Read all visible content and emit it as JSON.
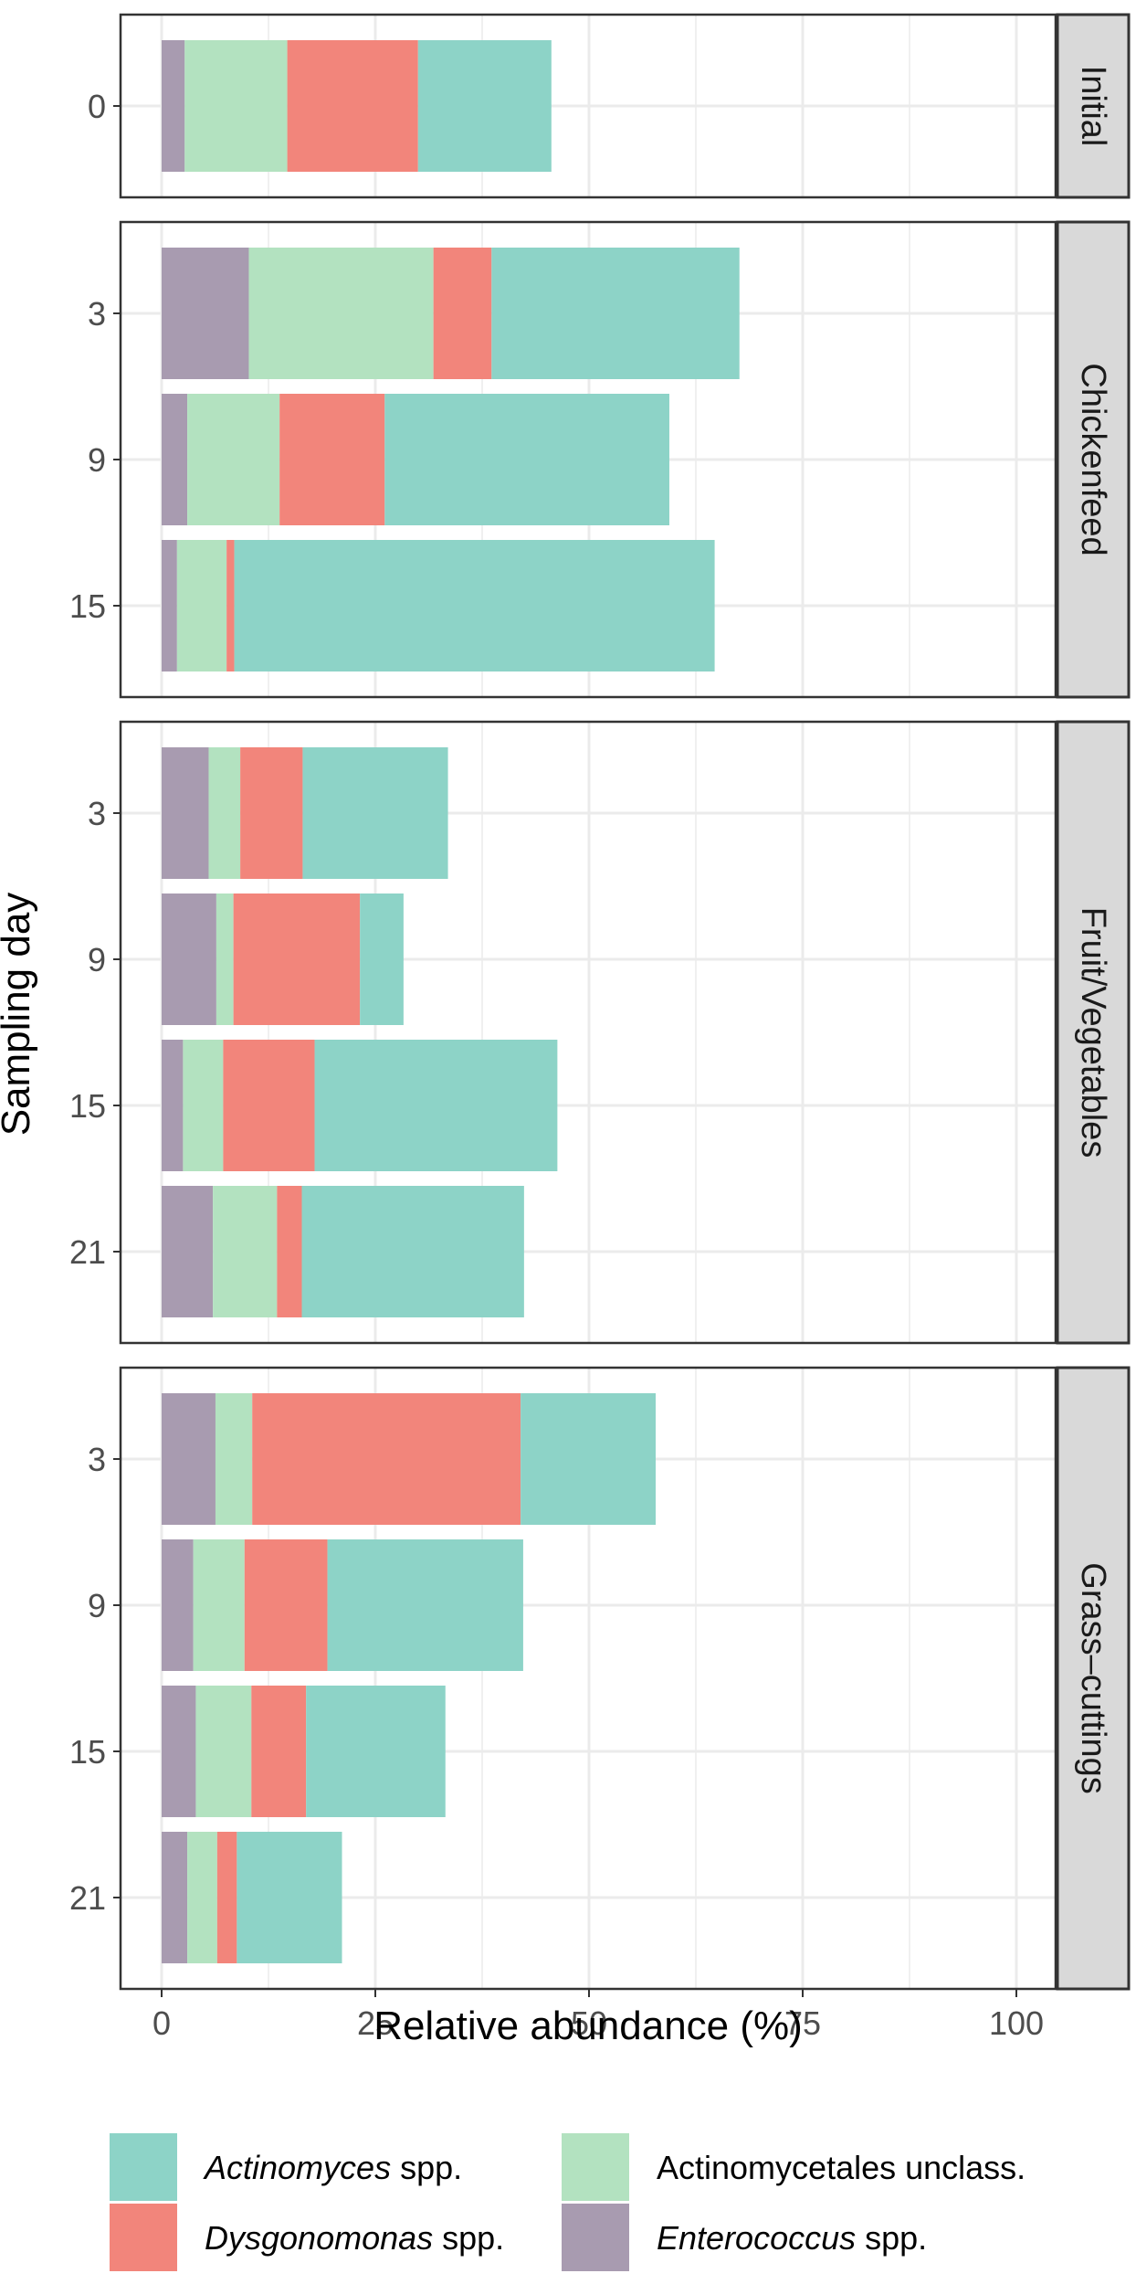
{
  "chart_data": {
    "type": "bar",
    "orientation": "horizontal",
    "stacked": true,
    "xlabel": "Relative abundance (%)",
    "ylabel": "Sampling day",
    "xlim": [
      0,
      100
    ],
    "xticks": [
      "0",
      "25",
      "50",
      "75",
      "100"
    ],
    "grid": true,
    "legend_position": "bottom",
    "series": [
      {
        "key": "enterococcus",
        "genus": "Enterococcus",
        "suffix": " spp.",
        "color": "#a89bb0"
      },
      {
        "key": "actinomycetales",
        "genus": "",
        "suffix": "Actinomycetales unclass.",
        "color": "#b3e2c0"
      },
      {
        "key": "dysgonomonas",
        "genus": "Dysgonomonas",
        "suffix": " spp.",
        "color": "#f2857b"
      },
      {
        "key": "actinomyces",
        "genus": "Actinomyces",
        "suffix": " spp.",
        "color": "#8dd3c7"
      }
    ],
    "legend_order": [
      "actinomyces",
      "actinomycetales",
      "dysgonomonas",
      "enterococcus"
    ],
    "panels": [
      {
        "label": "Initial",
        "rows": [
          {
            "day": "0",
            "values": {
              "enterococcus": 2.7,
              "actinomycetales": 12.0,
              "dysgonomonas": 15.3,
              "actinomyces": 15.6
            }
          }
        ]
      },
      {
        "label": "Chickenfeed",
        "rows": [
          {
            "day": "3",
            "values": {
              "enterococcus": 10.2,
              "actinomycetales": 21.6,
              "dysgonomonas": 6.8,
              "actinomyces": 29.0
            }
          },
          {
            "day": "9",
            "values": {
              "enterococcus": 3.0,
              "actinomycetales": 10.8,
              "dysgonomonas": 12.3,
              "actinomyces": 33.3
            }
          },
          {
            "day": "15",
            "values": {
              "enterococcus": 1.8,
              "actinomycetales": 5.8,
              "dysgonomonas": 0.9,
              "actinomyces": 56.2
            }
          }
        ]
      },
      {
        "label": "Fruit/Vegetables",
        "rows": [
          {
            "day": "3",
            "values": {
              "enterococcus": 5.5,
              "actinomycetales": 3.7,
              "dysgonomonas": 7.3,
              "actinomyces": 17.0
            }
          },
          {
            "day": "9",
            "values": {
              "enterococcus": 6.4,
              "actinomycetales": 2.0,
              "dysgonomonas": 14.8,
              "actinomyces": 5.1
            }
          },
          {
            "day": "15",
            "values": {
              "enterococcus": 2.5,
              "actinomycetales": 4.7,
              "dysgonomonas": 10.7,
              "actinomyces": 28.4
            }
          },
          {
            "day": "21",
            "values": {
              "enterococcus": 6.0,
              "actinomycetales": 7.5,
              "dysgonomonas": 2.9,
              "actinomyces": 26.0
            }
          }
        ]
      },
      {
        "label": "Grass–cuttings",
        "rows": [
          {
            "day": "3",
            "values": {
              "enterococcus": 6.3,
              "actinomycetales": 4.3,
              "dysgonomonas": 31.4,
              "actinomyces": 15.8
            }
          },
          {
            "day": "9",
            "values": {
              "enterococcus": 3.7,
              "actinomycetales": 6.0,
              "dysgonomonas": 9.7,
              "actinomyces": 22.9
            }
          },
          {
            "day": "15",
            "values": {
              "enterococcus": 4.0,
              "actinomycetales": 6.5,
              "dysgonomonas": 6.4,
              "actinomyces": 16.3
            }
          },
          {
            "day": "21",
            "values": {
              "enterococcus": 3.0,
              "actinomycetales": 3.5,
              "dysgonomonas": 2.3,
              "actinomyces": 12.3
            }
          }
        ]
      }
    ]
  }
}
